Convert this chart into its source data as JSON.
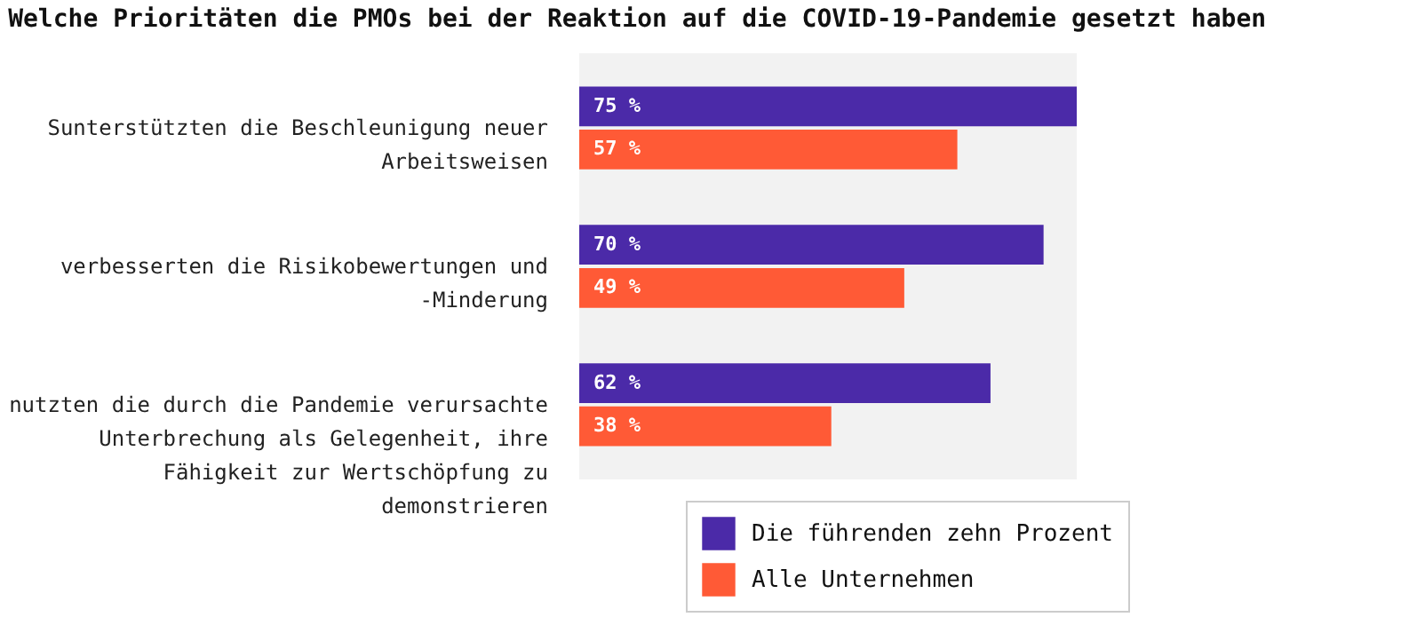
{
  "chart_data": {
    "type": "bar",
    "orientation": "horizontal",
    "title": "Welche Prioritäten die PMOs bei der Reaktion auf die COVID-19-Pandemie gesetzt haben",
    "categories": [
      "Sunterstützten die Beschleunigung neuer Arbeitsweisen",
      "verbesserten die Risikobewertungen und -Minderung",
      "nutzten die durch die Pandemie verursachte Unterbrechung als Gelegenheit, ihre Fähigkeit zur Wertschöpfung zu demonstrieren"
    ],
    "series": [
      {
        "name": "Die führenden zehn Prozent",
        "color": "#4b2aa8",
        "values": [
          75,
          70,
          62
        ],
        "value_labels": [
          "75 %",
          "70 %",
          "62 %"
        ]
      },
      {
        "name": "Alle Unternehmen",
        "color": "#ff5a36",
        "values": [
          57,
          49,
          38
        ],
        "value_labels": [
          "57 %",
          "49 %",
          "38 %"
        ]
      }
    ],
    "legend": "bottom right"
  }
}
